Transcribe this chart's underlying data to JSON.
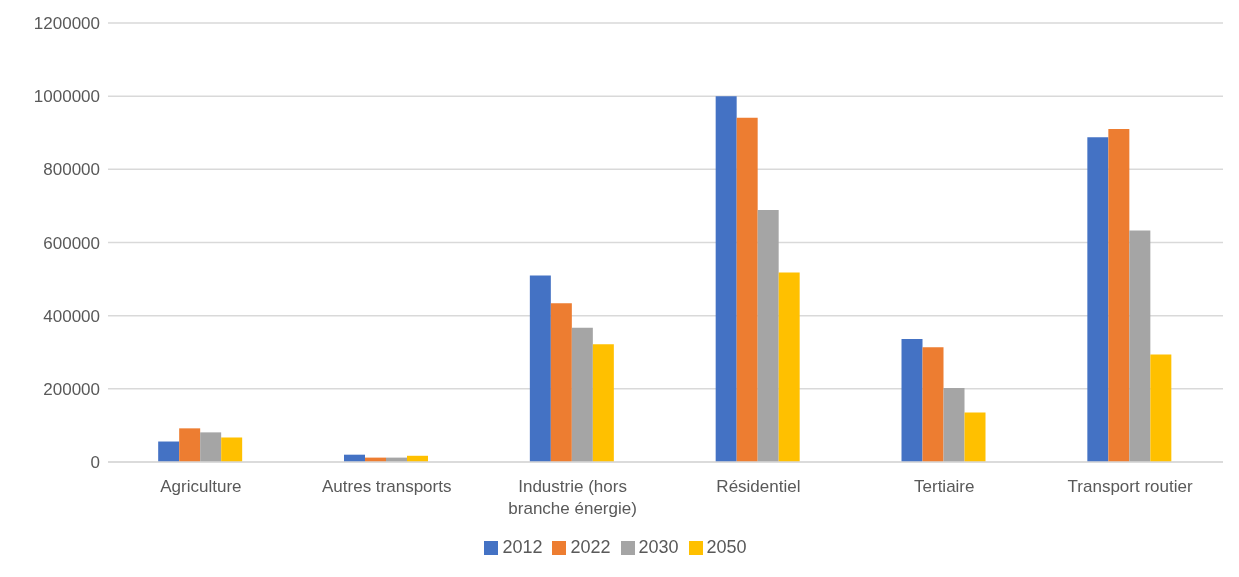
{
  "chart_data": {
    "type": "bar",
    "categories": [
      "Agriculture",
      "Autres transports",
      "Industrie (hors branche énergie)",
      "Résidentiel",
      "Tertiaire",
      "Transport routier"
    ],
    "series": [
      {
        "name": "2012",
        "color": "#4472c4",
        "values": [
          56000,
          20000,
          510000,
          1000000,
          336000,
          888000
        ]
      },
      {
        "name": "2022",
        "color": "#ed7d31",
        "values": [
          92000,
          12000,
          434000,
          941000,
          314000,
          910000
        ]
      },
      {
        "name": "2030",
        "color": "#a5a5a5",
        "values": [
          81000,
          12000,
          367000,
          689000,
          202000,
          633000
        ]
      },
      {
        "name": "2050",
        "color": "#ffc000",
        "values": [
          67000,
          17000,
          322000,
          518000,
          135000,
          294000
        ]
      }
    ],
    "ylim": [
      0,
      1200000
    ],
    "yticks": [
      0,
      200000,
      400000,
      600000,
      800000,
      1000000,
      1200000
    ],
    "grid": "y",
    "legend": "bottom"
  }
}
